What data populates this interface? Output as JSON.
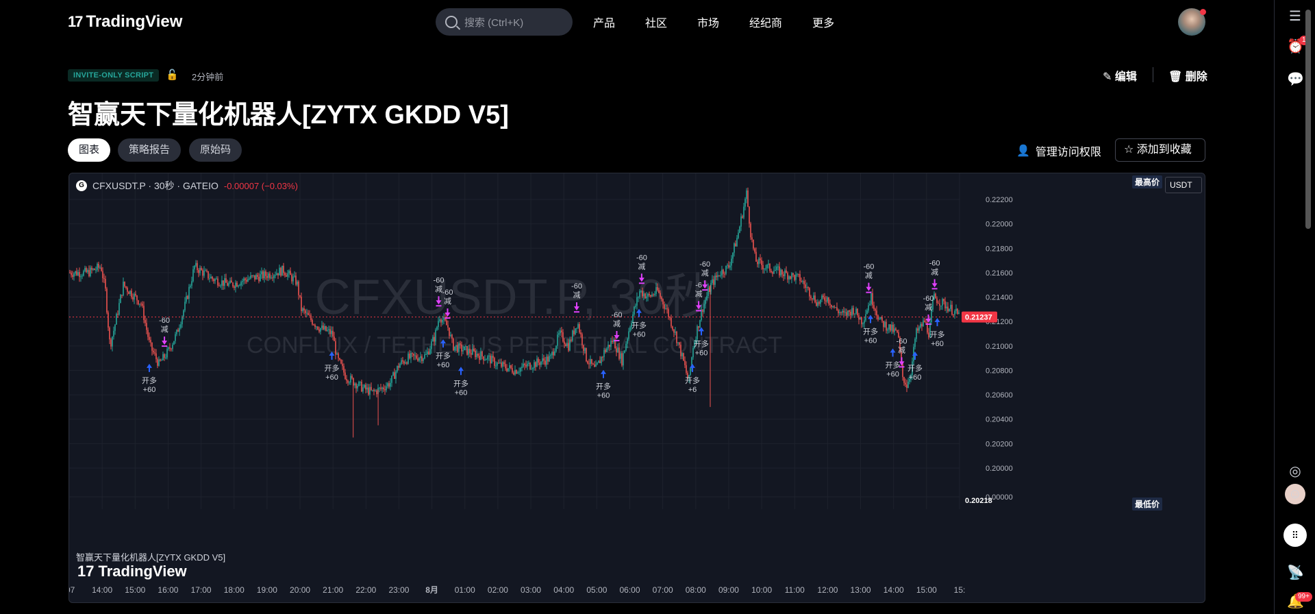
{
  "header": {
    "logo": "TradingView",
    "search_placeholder": "搜索 (Ctrl+K)",
    "nav": [
      "产品",
      "社区",
      "市场",
      "经纪商",
      "更多"
    ]
  },
  "rail": {
    "alerts_badge": "1",
    "notif_badge": "99+"
  },
  "script": {
    "tag": "INVITE-ONLY SCRIPT",
    "time_ago": "2分钟前",
    "edit_label": "编辑",
    "delete_label": "删除",
    "title": "智赢天下量化机器人[ZYTX GKDD V5]",
    "tabs": [
      "图表",
      "策略报告",
      "原始码"
    ],
    "manage_access": "管理访问权限",
    "add_fav": "添加到收藏"
  },
  "chart_data": {
    "type": "candlestick",
    "symbol_header": "CFXUSDT.P · 30秒 · GATEIO",
    "change": "-0.00007 (−0.03%)",
    "watermark_symbol": "CFXUSDT.P, 30秒",
    "watermark_desc": "CONFLUX / TETHERUS PERPETUAL CONTRACT",
    "indicator_label": "智赢天下量化机器人[ZYTX GKDD V5]",
    "currency": "USDT",
    "high_label": "最高价",
    "low_label": "最低价",
    "low_value": "0.20218",
    "last_price": "0.21237",
    "y_ticks": [
      "0.22200",
      "0.22000",
      "0.21800",
      "0.21600",
      "0.21400",
      "0.21200",
      "0.21000",
      "0.20800",
      "0.20600",
      "0.20400",
      "0.20200",
      "0.20000",
      "0.00000"
    ],
    "x_ticks": [
      ":07",
      "14:00",
      "15:00",
      "16:00",
      "17:00",
      "18:00",
      "19:00",
      "20:00",
      "21:00",
      "22:00",
      "23:00",
      "8月",
      "01:00",
      "02:00",
      "03:00",
      "04:00",
      "05:00",
      "06:00",
      "07:00",
      "08:00",
      "09:00",
      "10:00",
      "11:00",
      "12:00",
      "13:00",
      "14:00",
      "15:00",
      "15:"
    ],
    "path_points": [
      [
        0,
        0.216
      ],
      [
        0.02,
        0.216
      ],
      [
        0.035,
        0.2165
      ],
      [
        0.04,
        0.2145
      ],
      [
        0.045,
        0.21
      ],
      [
        0.05,
        0.2115
      ],
      [
        0.06,
        0.215
      ],
      [
        0.08,
        0.2135
      ],
      [
        0.09,
        0.21
      ],
      [
        0.1,
        0.2085
      ],
      [
        0.11,
        0.2095
      ],
      [
        0.12,
        0.211
      ],
      [
        0.13,
        0.2135
      ],
      [
        0.14,
        0.2165
      ],
      [
        0.16,
        0.2155
      ],
      [
        0.18,
        0.215
      ],
      [
        0.2,
        0.2155
      ],
      [
        0.22,
        0.2158
      ],
      [
        0.24,
        0.2162
      ],
      [
        0.255,
        0.2152
      ],
      [
        0.26,
        0.213
      ],
      [
        0.27,
        0.2122
      ],
      [
        0.28,
        0.2115
      ],
      [
        0.295,
        0.211
      ],
      [
        0.3,
        0.209
      ],
      [
        0.31,
        0.2075
      ],
      [
        0.32,
        0.207
      ],
      [
        0.33,
        0.2065
      ],
      [
        0.34,
        0.2062
      ],
      [
        0.35,
        0.2065
      ],
      [
        0.36,
        0.207
      ],
      [
        0.37,
        0.2085
      ],
      [
        0.38,
        0.209
      ],
      [
        0.4,
        0.2092
      ],
      [
        0.41,
        0.2108
      ],
      [
        0.415,
        0.2125
      ],
      [
        0.425,
        0.2115
      ],
      [
        0.43,
        0.21
      ],
      [
        0.45,
        0.2095
      ],
      [
        0.47,
        0.209
      ],
      [
        0.48,
        0.2085
      ],
      [
        0.5,
        0.208
      ],
      [
        0.51,
        0.2083
      ],
      [
        0.52,
        0.2085
      ],
      [
        0.54,
        0.209
      ],
      [
        0.55,
        0.211
      ],
      [
        0.56,
        0.21
      ],
      [
        0.57,
        0.212
      ],
      [
        0.58,
        0.209
      ],
      [
        0.59,
        0.208
      ],
      [
        0.6,
        0.2095
      ],
      [
        0.61,
        0.2105
      ],
      [
        0.62,
        0.2088
      ],
      [
        0.63,
        0.212
      ],
      [
        0.64,
        0.2145
      ],
      [
        0.65,
        0.214
      ],
      [
        0.66,
        0.2145
      ],
      [
        0.67,
        0.213
      ],
      [
        0.68,
        0.211
      ],
      [
        0.69,
        0.2085
      ],
      [
        0.695,
        0.207
      ],
      [
        0.7,
        0.21
      ],
      [
        0.71,
        0.213
      ],
      [
        0.72,
        0.215
      ],
      [
        0.73,
        0.216
      ],
      [
        0.74,
        0.2165
      ],
      [
        0.75,
        0.219
      ],
      [
        0.76,
        0.2225
      ],
      [
        0.765,
        0.219
      ],
      [
        0.77,
        0.217
      ],
      [
        0.78,
        0.2165
      ],
      [
        0.8,
        0.216
      ],
      [
        0.82,
        0.2155
      ],
      [
        0.83,
        0.2145
      ],
      [
        0.84,
        0.2135
      ],
      [
        0.85,
        0.214
      ],
      [
        0.86,
        0.213
      ],
      [
        0.87,
        0.2125
      ],
      [
        0.88,
        0.213
      ],
      [
        0.89,
        0.212
      ],
      [
        0.9,
        0.214
      ],
      [
        0.91,
        0.212
      ],
      [
        0.92,
        0.2115
      ],
      [
        0.93,
        0.211
      ],
      [
        0.935,
        0.2075
      ],
      [
        0.94,
        0.2068
      ],
      [
        0.945,
        0.208
      ],
      [
        0.95,
        0.211
      ],
      [
        0.96,
        0.212
      ],
      [
        0.965,
        0.211
      ],
      [
        0.97,
        0.214
      ],
      [
        0.98,
        0.2135
      ],
      [
        0.99,
        0.213
      ],
      [
        1.0,
        0.2124
      ]
    ],
    "markers": [
      {
        "x": 0.09,
        "label1": "开多",
        "label2": "+60",
        "side": "long"
      },
      {
        "x": 0.107,
        "label1": "-60",
        "label2": "减",
        "side": "short"
      },
      {
        "x": 0.295,
        "label1": "开多",
        "label2": "+60",
        "side": "long"
      },
      {
        "x": 0.415,
        "label1": "-60",
        "label2": "减",
        "side": "short"
      },
      {
        "x": 0.42,
        "label1": "开多",
        "label2": "+60",
        "side": "long"
      },
      {
        "x": 0.425,
        "label1": "-60",
        "label2": "减",
        "side": "short"
      },
      {
        "x": 0.44,
        "label1": "开多",
        "label2": "+60",
        "side": "long"
      },
      {
        "x": 0.57,
        "label1": "-60",
        "label2": "减",
        "side": "short"
      },
      {
        "x": 0.6,
        "label1": "开多",
        "label2": "+60",
        "side": "long"
      },
      {
        "x": 0.615,
        "label1": "-60",
        "label2": "减",
        "side": "short"
      },
      {
        "x": 0.64,
        "label1": "开多",
        "label2": "+60",
        "side": "long"
      },
      {
        "x": 0.643,
        "label1": "-60",
        "label2": "减",
        "side": "short"
      },
      {
        "x": 0.7,
        "label1": "开多",
        "label2": "+6",
        "side": "long"
      },
      {
        "x": 0.707,
        "label1": "-6",
        "label2": "减",
        "side": "short"
      },
      {
        "x": 0.71,
        "label1": "开多",
        "label2": "+60",
        "side": "long"
      },
      {
        "x": 0.714,
        "label1": "-60",
        "label2": "减",
        "side": "short"
      },
      {
        "x": 0.898,
        "label1": "-60",
        "label2": "减",
        "side": "short"
      },
      {
        "x": 0.9,
        "label1": "开多",
        "label2": "+60",
        "side": "long"
      },
      {
        "x": 0.925,
        "label1": "开多",
        "label2": "+60",
        "side": "long"
      },
      {
        "x": 0.935,
        "label1": "-60",
        "label2": "减",
        "side": "short"
      },
      {
        "x": 0.95,
        "label1": "开多",
        "label2": "+60",
        "side": "long"
      },
      {
        "x": 0.965,
        "label1": "-60",
        "label2": "减",
        "side": "short"
      },
      {
        "x": 0.972,
        "label1": "-60",
        "label2": "减",
        "side": "short"
      },
      {
        "x": 0.975,
        "label1": "开多",
        "label2": "+60",
        "side": "long"
      }
    ],
    "up_color": "#26a69a",
    "down_color": "#ef5350",
    "marker_long_color": "#2962ff",
    "marker_short_color": "#e040fb"
  }
}
